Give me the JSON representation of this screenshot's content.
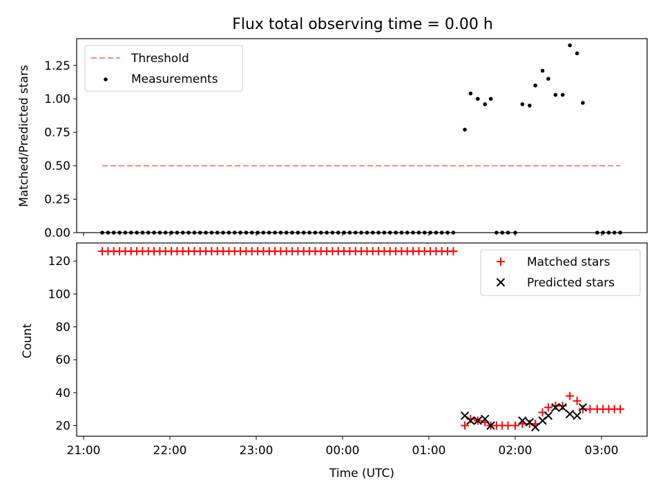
{
  "title": "Flux total observing time = 0.00 h",
  "colors": {
    "threshold": "#ff8080",
    "matched": "#ff0000",
    "predicted": "#000000",
    "measurement": "#000000"
  },
  "chart_data": [
    {
      "type": "scatter",
      "ylabel": "Matched/Predicted stars",
      "ylim": [
        0,
        1.45
      ],
      "yticks": [
        0.0,
        0.25,
        0.5,
        0.75,
        1.0,
        1.25
      ],
      "ytick_labels": [
        "0.00",
        "0.25",
        "0.50",
        "0.75",
        "1.00",
        "1.25"
      ],
      "legend": {
        "placement": "top-left",
        "entries": [
          "Threshold",
          "Measurements"
        ]
      },
      "threshold": {
        "name": "Threshold",
        "value": 0.5,
        "x_start": "21:13",
        "x_end": "03:13"
      },
      "series": [
        {
          "name": "Measurements",
          "points": [
            [
              "21:13",
              0
            ],
            [
              "21:17",
              0
            ],
            [
              "21:21",
              0
            ],
            [
              "21:25",
              0
            ],
            [
              "21:29",
              0
            ],
            [
              "21:33",
              0
            ],
            [
              "21:37",
              0
            ],
            [
              "21:41",
              0
            ],
            [
              "21:45",
              0
            ],
            [
              "21:49",
              0
            ],
            [
              "21:53",
              0
            ],
            [
              "21:57",
              0
            ],
            [
              "22:01",
              0
            ],
            [
              "22:05",
              0
            ],
            [
              "22:09",
              0
            ],
            [
              "22:13",
              0
            ],
            [
              "22:17",
              0
            ],
            [
              "22:21",
              0
            ],
            [
              "22:25",
              0
            ],
            [
              "22:29",
              0
            ],
            [
              "22:33",
              0
            ],
            [
              "22:37",
              0
            ],
            [
              "22:41",
              0
            ],
            [
              "22:45",
              0
            ],
            [
              "22:49",
              0
            ],
            [
              "22:53",
              0
            ],
            [
              "22:57",
              0
            ],
            [
              "23:01",
              0
            ],
            [
              "23:05",
              0
            ],
            [
              "23:09",
              0
            ],
            [
              "23:13",
              0
            ],
            [
              "23:17",
              0
            ],
            [
              "23:21",
              0
            ],
            [
              "23:25",
              0
            ],
            [
              "23:29",
              0
            ],
            [
              "23:33",
              0
            ],
            [
              "23:37",
              0
            ],
            [
              "23:41",
              0
            ],
            [
              "23:45",
              0
            ],
            [
              "23:49",
              0
            ],
            [
              "23:53",
              0
            ],
            [
              "23:57",
              0
            ],
            [
              "00:01",
              0
            ],
            [
              "00:05",
              0
            ],
            [
              "00:09",
              0
            ],
            [
              "00:13",
              0
            ],
            [
              "00:17",
              0
            ],
            [
              "00:21",
              0
            ],
            [
              "00:25",
              0
            ],
            [
              "00:29",
              0
            ],
            [
              "00:33",
              0
            ],
            [
              "00:37",
              0
            ],
            [
              "00:41",
              0
            ],
            [
              "00:45",
              0
            ],
            [
              "00:49",
              0
            ],
            [
              "00:53",
              0
            ],
            [
              "00:57",
              0
            ],
            [
              "01:01",
              0
            ],
            [
              "01:05",
              0
            ],
            [
              "01:09",
              0
            ],
            [
              "01:13",
              0
            ],
            [
              "01:17",
              0
            ],
            [
              "01:25",
              0.77
            ],
            [
              "01:29",
              1.04
            ],
            [
              "01:34",
              1.0
            ],
            [
              "01:39",
              0.96
            ],
            [
              "01:43",
              1.0
            ],
            [
              "01:47",
              0
            ],
            [
              "01:51",
              0
            ],
            [
              "01:55",
              0
            ],
            [
              "02:00",
              0
            ],
            [
              "02:05",
              0.96
            ],
            [
              "02:10",
              0.95
            ],
            [
              "02:14",
              1.1
            ],
            [
              "02:19",
              1.21
            ],
            [
              "02:23",
              1.15
            ],
            [
              "02:28",
              1.03
            ],
            [
              "02:33",
              1.03
            ],
            [
              "02:38",
              1.4
            ],
            [
              "02:43",
              1.34
            ],
            [
              "02:47",
              0.97
            ],
            [
              "02:57",
              0
            ],
            [
              "03:01",
              0
            ],
            [
              "03:05",
              0
            ],
            [
              "03:09",
              0
            ],
            [
              "03:13",
              0
            ]
          ]
        }
      ]
    },
    {
      "type": "scatter",
      "xlabel": "Time (UTC)",
      "ylabel": "Count",
      "ylim": [
        13.5,
        131
      ],
      "yticks": [
        20,
        40,
        60,
        80,
        100,
        120
      ],
      "xticks": [
        "21:00",
        "22:00",
        "23:00",
        "00:00",
        "01:00",
        "02:00",
        "03:00"
      ],
      "legend": {
        "placement": "top-right",
        "entries": [
          "Matched stars",
          "Predicted stars"
        ]
      },
      "series": [
        {
          "name": "Matched stars",
          "marker": "+",
          "points": [
            [
              "21:13",
              126
            ],
            [
              "21:17",
              126
            ],
            [
              "21:21",
              126
            ],
            [
              "21:25",
              126
            ],
            [
              "21:29",
              126
            ],
            [
              "21:33",
              126
            ],
            [
              "21:37",
              126
            ],
            [
              "21:41",
              126
            ],
            [
              "21:45",
              126
            ],
            [
              "21:49",
              126
            ],
            [
              "21:53",
              126
            ],
            [
              "21:57",
              126
            ],
            [
              "22:01",
              126
            ],
            [
              "22:05",
              126
            ],
            [
              "22:09",
              126
            ],
            [
              "22:13",
              126
            ],
            [
              "22:17",
              126
            ],
            [
              "22:21",
              126
            ],
            [
              "22:25",
              126
            ],
            [
              "22:29",
              126
            ],
            [
              "22:33",
              126
            ],
            [
              "22:37",
              126
            ],
            [
              "22:41",
              126
            ],
            [
              "22:45",
              126
            ],
            [
              "22:49",
              126
            ],
            [
              "22:53",
              126
            ],
            [
              "22:57",
              126
            ],
            [
              "23:01",
              126
            ],
            [
              "23:05",
              126
            ],
            [
              "23:09",
              126
            ],
            [
              "23:13",
              126
            ],
            [
              "23:17",
              126
            ],
            [
              "23:21",
              126
            ],
            [
              "23:25",
              126
            ],
            [
              "23:29",
              126
            ],
            [
              "23:33",
              126
            ],
            [
              "23:37",
              126
            ],
            [
              "23:41",
              126
            ],
            [
              "23:45",
              126
            ],
            [
              "23:49",
              126
            ],
            [
              "23:53",
              126
            ],
            [
              "23:57",
              126
            ],
            [
              "00:01",
              126
            ],
            [
              "00:05",
              126
            ],
            [
              "00:09",
              126
            ],
            [
              "00:13",
              126
            ],
            [
              "00:17",
              126
            ],
            [
              "00:21",
              126
            ],
            [
              "00:25",
              126
            ],
            [
              "00:29",
              126
            ],
            [
              "00:33",
              126
            ],
            [
              "00:37",
              126
            ],
            [
              "00:41",
              126
            ],
            [
              "00:45",
              126
            ],
            [
              "00:49",
              126
            ],
            [
              "00:53",
              126
            ],
            [
              "00:57",
              126
            ],
            [
              "01:01",
              126
            ],
            [
              "01:05",
              126
            ],
            [
              "01:09",
              126
            ],
            [
              "01:13",
              126
            ],
            [
              "01:17",
              126
            ],
            [
              "01:25",
              20
            ],
            [
              "01:29",
              24
            ],
            [
              "01:34",
              23
            ],
            [
              "01:39",
              22
            ],
            [
              "01:43",
              20
            ],
            [
              "01:47",
              20
            ],
            [
              "01:51",
              20
            ],
            [
              "01:55",
              20
            ],
            [
              "02:00",
              20
            ],
            [
              "02:05",
              21
            ],
            [
              "02:10",
              21
            ],
            [
              "02:14",
              21
            ],
            [
              "02:19",
              28
            ],
            [
              "02:23",
              31
            ],
            [
              "02:28",
              32
            ],
            [
              "02:33",
              32
            ],
            [
              "02:38",
              38
            ],
            [
              "02:43",
              35
            ],
            [
              "02:47",
              30
            ],
            [
              "02:52",
              30
            ],
            [
              "02:57",
              30
            ],
            [
              "03:01",
              30
            ],
            [
              "03:05",
              30
            ],
            [
              "03:09",
              30
            ],
            [
              "03:13",
              30
            ]
          ]
        },
        {
          "name": "Predicted stars",
          "marker": "x",
          "points": [
            [
              "01:25",
              26
            ],
            [
              "01:29",
              23
            ],
            [
              "01:34",
              23
            ],
            [
              "01:39",
              24
            ],
            [
              "01:43",
              20
            ],
            [
              "02:05",
              23
            ],
            [
              "02:10",
              22
            ],
            [
              "02:14",
              19
            ],
            [
              "02:19",
              23
            ],
            [
              "02:23",
              26
            ],
            [
              "02:28",
              31
            ],
            [
              "02:33",
              31
            ],
            [
              "02:38",
              27
            ],
            [
              "02:43",
              26
            ],
            [
              "02:47",
              31
            ]
          ]
        }
      ]
    }
  ]
}
